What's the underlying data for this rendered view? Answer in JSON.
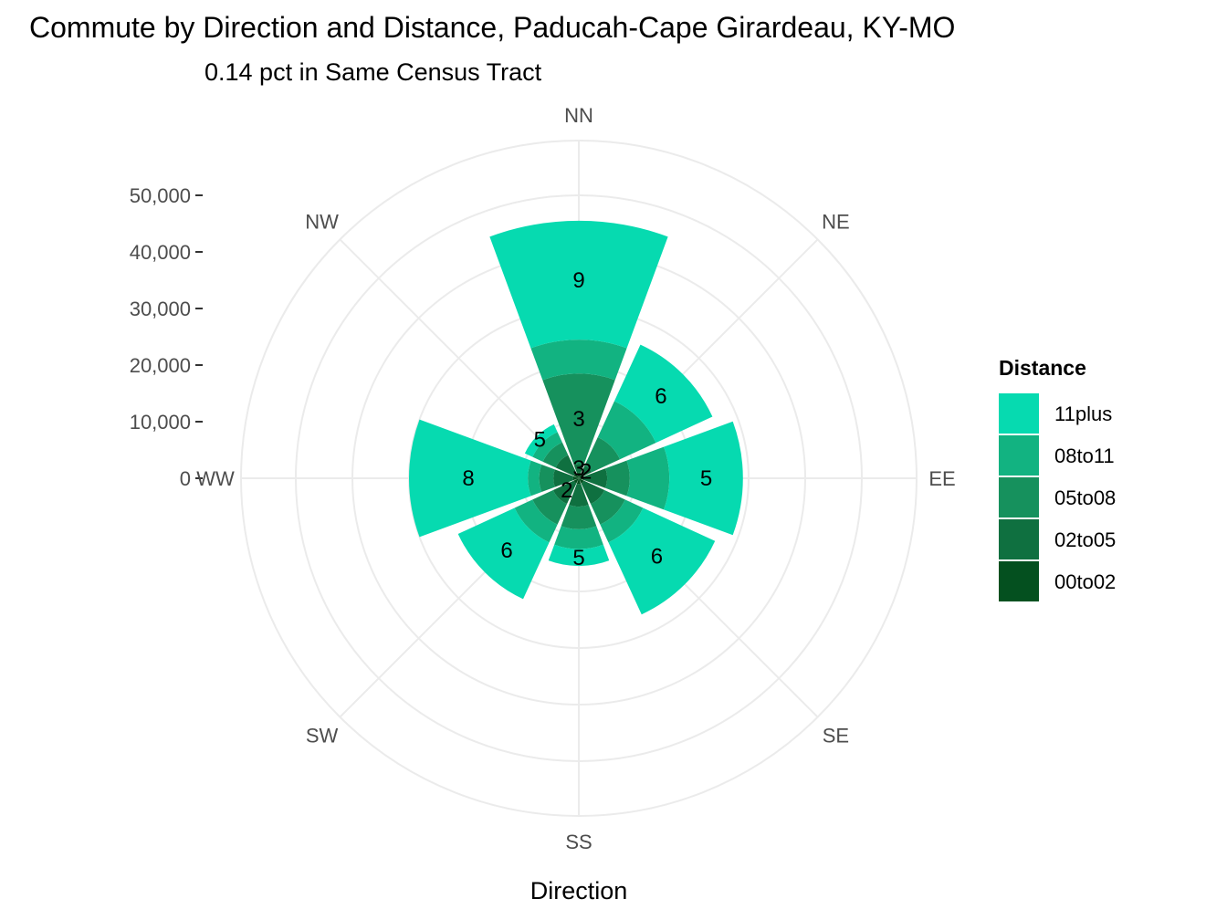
{
  "chart_data": {
    "type": "bar",
    "coord": "polar",
    "stacked": true,
    "title": "Commute by Direction and Distance, Paducah-Cape Girardeau, KY-MO",
    "subtitle": "0.14 pct in Same Census Tract",
    "xlabel": "Direction",
    "ylabel": "",
    "categories": [
      "NN",
      "NE",
      "EE",
      "SE",
      "SS",
      "SW",
      "WW",
      "NW"
    ],
    "ylim": [
      0,
      50000
    ],
    "y_ticks": [
      0,
      10000,
      20000,
      30000,
      40000,
      50000
    ],
    "y_tick_labels": [
      "0",
      "10,000",
      "20,000",
      "30,000",
      "40,000",
      "50,000"
    ],
    "grid": true,
    "legend": {
      "title": "Distance",
      "position": "right",
      "order": [
        "11plus",
        "08to11",
        "05to08",
        "02to05",
        "00to02"
      ]
    },
    "series": [
      {
        "name": "00to02",
        "color": "#04501f",
        "values": [
          1000,
          1000,
          1000,
          1000,
          1000,
          1000,
          1000,
          1000
        ],
        "labels": [
          "",
          "",
          "",
          "",
          "",
          "",
          "",
          ""
        ]
      },
      {
        "name": "02to05",
        "color": "#0f7040",
        "values": [
          1500,
          1500,
          4000,
          4000,
          4000,
          4000,
          3500,
          3500
        ],
        "labels": [
          "3",
          "2",
          "",
          "",
          "",
          "2",
          "",
          ""
        ]
      },
      {
        "name": "05to08",
        "color": "#16915d",
        "values": [
          16000,
          5500,
          4000,
          4000,
          4000,
          4000,
          2500,
          2500
        ],
        "labels": [
          "3",
          "",
          "",
          "",
          "",
          "",
          "",
          ""
        ]
      },
      {
        "name": "08to11",
        "color": "#12b381",
        "values": [
          6000,
          7000,
          7000,
          3500,
          3500,
          3500,
          2000,
          2000
        ],
        "labels": [
          "",
          "",
          "",
          "",
          "",
          "",
          "",
          ""
        ]
      },
      {
        "name": "11plus",
        "color": "#06dab0",
        "values": [
          21000,
          11000,
          13000,
          14000,
          3000,
          11000,
          21000,
          1500
        ],
        "labels": [
          "9",
          "6",
          "5",
          "6",
          "5",
          "6",
          "8",
          "5"
        ]
      }
    ]
  }
}
